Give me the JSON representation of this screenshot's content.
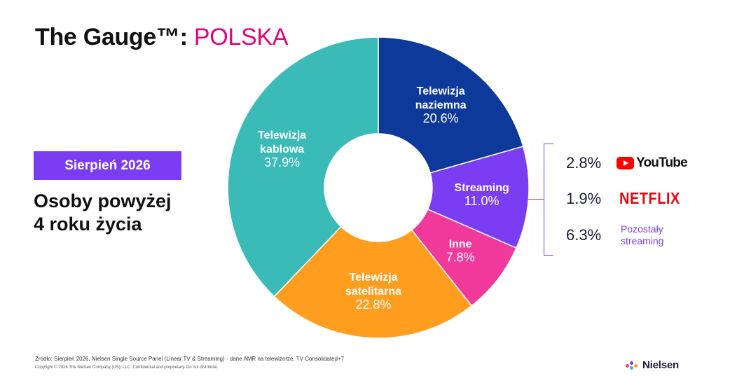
{
  "header": {
    "title_main": "The Gauge™:",
    "title_accent": "POLSKA"
  },
  "period_badge": "Sierpień 2026",
  "audience": {
    "line1": "Osoby powyżej",
    "line2": "4 roku życia"
  },
  "colors": {
    "accent": "#e6007e",
    "purple": "#7a3df2",
    "naziemna": "#0d3a9a",
    "streaming": "#7a3df2",
    "inne": "#f0399a",
    "satelitarna": "#ff9d1f",
    "kablowa": "#3bbbb8"
  },
  "chart_data": {
    "type": "pie",
    "donut": true,
    "slices": [
      {
        "label_lines": [
          "Telewizja",
          "naziemna"
        ],
        "value": 20.6,
        "value_label": "20.6%",
        "color": "#0d3a9a"
      },
      {
        "label_lines": [
          "Streaming"
        ],
        "value": 11.0,
        "value_label": "11.0%",
        "color": "#7a3df2"
      },
      {
        "label_lines": [
          "Inne"
        ],
        "value": 7.8,
        "value_label": "7.8%",
        "color": "#f0399a"
      },
      {
        "label_lines": [
          "Telewizja",
          "satelitarna"
        ],
        "value": 22.8,
        "value_label": "22.8%",
        "color": "#ff9d1f"
      },
      {
        "label_lines": [
          "Telewizja",
          "kablowa"
        ],
        "value": 37.9,
        "value_label": "37.9%",
        "color": "#3bbbb8"
      }
    ],
    "streaming_breakdown": [
      {
        "value_label": "2.8%",
        "service": "YouTube",
        "icon": "youtube-logo"
      },
      {
        "value_label": "1.9%",
        "service": "NETFLIX",
        "icon": "netflix-logo"
      },
      {
        "value_label": "6.3%",
        "service_lines": [
          "Pozostały",
          "streaming"
        ]
      }
    ]
  },
  "footer": {
    "source": "Źródło: Sierpień 2026, Nielsen Single Source Panel (Linear TV & Streaming) - dane AMR na telewizorze, TV Consolidated+7",
    "copyright": "Copyright © 2026 The Nielsen Company (US), LLC. Confidential and proprietary. Do not distribute.",
    "brand": "Nielsen"
  }
}
